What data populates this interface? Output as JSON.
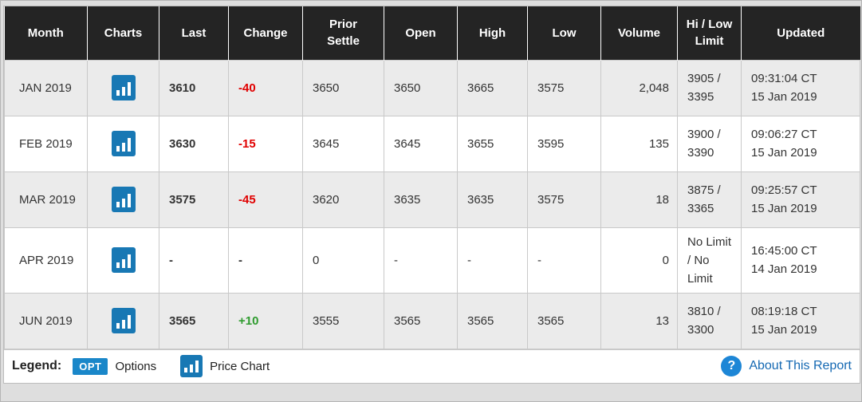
{
  "colors": {
    "header_bg": "#242424",
    "row_alt_bg": "#ebebeb",
    "negative_change": "#e00000",
    "positive_change": "#2e9b2e",
    "chart_icon_blue": "#1878b4",
    "opt_badge_blue": "#1a87c9",
    "help_icon_blue": "#1d86d6",
    "link_blue": "#1569b3"
  },
  "table": {
    "columns": [
      {
        "key": "month",
        "label": "Month"
      },
      {
        "key": "charts",
        "label": "Charts"
      },
      {
        "key": "last",
        "label": "Last"
      },
      {
        "key": "change",
        "label": "Change"
      },
      {
        "key": "prior_settle",
        "label": "Prior\nSettle"
      },
      {
        "key": "open",
        "label": "Open"
      },
      {
        "key": "high",
        "label": "High"
      },
      {
        "key": "low",
        "label": "Low"
      },
      {
        "key": "volume",
        "label": "Volume"
      },
      {
        "key": "limit",
        "label": "Hi / Low\nLimit"
      },
      {
        "key": "updated",
        "label": "Updated"
      }
    ],
    "rows": [
      {
        "month": "JAN 2019",
        "charts": "price-chart-icon",
        "last": "3610",
        "change": "-40",
        "prior_settle": "3650",
        "open": "3650",
        "high": "3665",
        "low": "3575",
        "volume": "2,048",
        "limit": "3905 /\n3395",
        "updated": "09:31:04 CT\n15 Jan 2019"
      },
      {
        "month": "FEB 2019",
        "charts": "price-chart-icon",
        "last": "3630",
        "change": "-15",
        "prior_settle": "3645",
        "open": "3645",
        "high": "3655",
        "low": "3595",
        "volume": "135",
        "limit": "3900 /\n3390",
        "updated": "09:06:27 CT\n15 Jan 2019"
      },
      {
        "month": "MAR 2019",
        "charts": "price-chart-icon",
        "last": "3575",
        "change": "-45",
        "prior_settle": "3620",
        "open": "3635",
        "high": "3635",
        "low": "3575",
        "volume": "18",
        "limit": "3875 /\n3365",
        "updated": "09:25:57 CT\n15 Jan 2019"
      },
      {
        "month": "APR 2019",
        "charts": "price-chart-icon",
        "last": "-",
        "change": "-",
        "prior_settle": "0",
        "open": "-",
        "high": "-",
        "low": "-",
        "volume": "0",
        "limit": "No Limit\n/ No\nLimit",
        "updated": "16:45:00 CT\n14 Jan 2019"
      },
      {
        "month": "JUN 2019",
        "charts": "price-chart-icon",
        "last": "3565",
        "change": "+10",
        "prior_settle": "3555",
        "open": "3565",
        "high": "3565",
        "low": "3565",
        "volume": "13",
        "limit": "3810 /\n3300",
        "updated": "08:19:18 CT\n15 Jan 2019"
      }
    ]
  },
  "legend": {
    "label": "Legend:",
    "opt_badge": "OPT",
    "options_label": "Options",
    "price_chart_label": "Price Chart"
  },
  "footer": {
    "help_icon": "?",
    "about_link": "About This Report"
  }
}
